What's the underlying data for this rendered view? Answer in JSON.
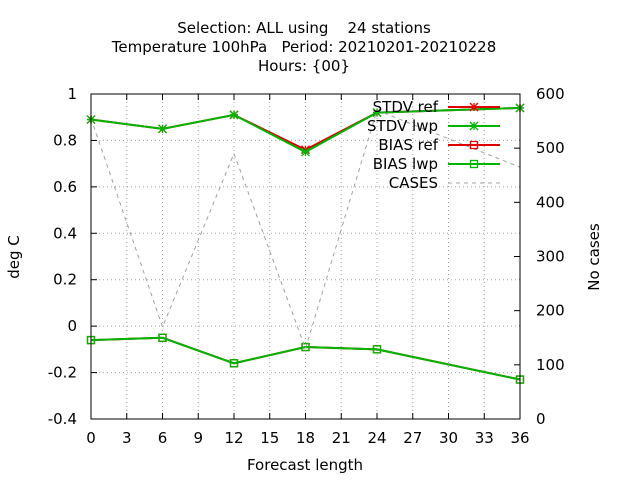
{
  "chart_data": {
    "type": "line",
    "title_lines": [
      "Selection: ALL using    24 stations",
      "Temperature 100hPa   Period: 20210201-20210228",
      "Hours: {00}"
    ],
    "xlabel": "Forecast length",
    "ylabel": "deg C",
    "y2label": "No cases",
    "x_ticks": [
      "0",
      "3",
      "6",
      "9",
      "12",
      "15",
      "18",
      "21",
      "24",
      "27",
      "30",
      "33",
      "36"
    ],
    "y_ticks": [
      "-0.4",
      "-0.2",
      "0",
      "0.2",
      "0.4",
      "0.6",
      "0.8",
      "1"
    ],
    "y2_ticks": [
      "0",
      "100",
      "200",
      "300",
      "400",
      "500",
      "600"
    ],
    "xlim": [
      0,
      36
    ],
    "ylim": [
      -0.4,
      1
    ],
    "y2lim": [
      0,
      600
    ],
    "grid": true,
    "legend_position": "top-right",
    "series": [
      {
        "name": "STDV ref",
        "axis": "y",
        "color": "#e00000",
        "marker": "star",
        "dash": "",
        "x": [
          0,
          6,
          12,
          18,
          24,
          36
        ],
        "y": [
          0.89,
          0.85,
          0.91,
          0.76,
          0.92,
          0.94
        ]
      },
      {
        "name": "STDV lwp",
        "axis": "y",
        "color": "#00b400",
        "marker": "star",
        "dash": "",
        "x": [
          0,
          6,
          12,
          18,
          24,
          36
        ],
        "y": [
          0.89,
          0.85,
          0.91,
          0.75,
          0.92,
          0.94
        ]
      },
      {
        "name": "BIAS ref",
        "axis": "y",
        "color": "#e00000",
        "marker": "square",
        "dash": "",
        "x": [
          0,
          6,
          12,
          18,
          24,
          36
        ],
        "y": [
          -0.06,
          -0.05,
          -0.16,
          -0.09,
          -0.1,
          -0.23
        ]
      },
      {
        "name": "BIAS lwp",
        "axis": "y",
        "color": "#00b400",
        "marker": "square",
        "dash": "",
        "x": [
          0,
          6,
          12,
          18,
          24,
          36
        ],
        "y": [
          -0.06,
          -0.05,
          -0.16,
          -0.09,
          -0.1,
          -0.23
        ]
      },
      {
        "name": "CASES",
        "axis": "y2",
        "color": "#a0a0a0",
        "marker": "",
        "dash": "4 4",
        "x": [
          0,
          6,
          12,
          18,
          24,
          36
        ],
        "y": [
          555,
          170,
          490,
          130,
          570,
          465
        ]
      }
    ]
  }
}
